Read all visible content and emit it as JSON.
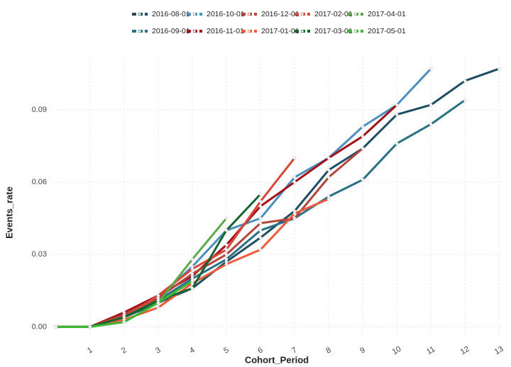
{
  "chart_data": {
    "type": "line",
    "x_label": "Cohort_Period",
    "y_label": "Events_rate",
    "x": [
      0,
      1,
      2,
      3,
      4,
      5,
      6,
      7,
      8,
      9,
      10,
      11,
      12,
      13
    ],
    "xlim": [
      -0.1,
      13.1
    ],
    "xticks": [
      1,
      2,
      3,
      4,
      5,
      6,
      7,
      8,
      9,
      10,
      11,
      12,
      13
    ],
    "ylim": [
      -0.004,
      0.112
    ],
    "yticks": [
      {
        "value": 0,
        "label": "0.00"
      },
      0.03,
      0.06,
      0.09
    ],
    "grid": true,
    "legend": "top",
    "series": [
      {
        "name": "2016-08-01",
        "color": "#1d4e63",
        "values": [
          0,
          0,
          0.004,
          0.01,
          0.016,
          0.027,
          0.037,
          0.048,
          0.065,
          0.074,
          0.088,
          0.092,
          0.102,
          0.107
        ]
      },
      {
        "name": "2016-09-01",
        "color": "#2b7186",
        "values": [
          0,
          0,
          0.004,
          0.011,
          0.02,
          0.028,
          0.04,
          0.045,
          0.054,
          0.061,
          0.076,
          0.084,
          0.094,
          null
        ]
      },
      {
        "name": "2016-10-01",
        "color": "#4a8fc0",
        "values": [
          0,
          0,
          0.005,
          0.012,
          0.025,
          0.04,
          0.045,
          0.062,
          0.07,
          0.083,
          0.092,
          0.107,
          null,
          null
        ]
      },
      {
        "name": "2016-11-01",
        "color": "#a3121a",
        "values": [
          0,
          0,
          0.006,
          0.013,
          0.021,
          0.034,
          0.05,
          0.06,
          0.07,
          0.079,
          0.092,
          null,
          null,
          null
        ]
      },
      {
        "name": "2016-12-01",
        "color": "#b5443a",
        "values": [
          0,
          0,
          0.005,
          0.012,
          0.022,
          0.03,
          0.043,
          0.045,
          0.062,
          0.074,
          null,
          null,
          null,
          null
        ]
      },
      {
        "name": "2017-01-01",
        "color": "#ef5a3e",
        "values": [
          0,
          0,
          0.003,
          0.008,
          0.018,
          0.026,
          0.032,
          0.047,
          0.053,
          null,
          null,
          null,
          null,
          null
        ]
      },
      {
        "name": "2017-02-01",
        "color": "#d9473a",
        "values": [
          0,
          0,
          0.004,
          0.013,
          0.024,
          0.032,
          0.052,
          0.07,
          null,
          null,
          null,
          null,
          null,
          null
        ]
      },
      {
        "name": "2017-03-01",
        "color": "#17652e",
        "values": [
          0,
          0,
          0.004,
          0.011,
          0.016,
          0.04,
          0.055,
          null,
          null,
          null,
          null,
          null,
          null,
          null
        ]
      },
      {
        "name": "2017-04-01",
        "color": "#5ea84c",
        "values": [
          0,
          0,
          0.002,
          0.01,
          0.028,
          0.045,
          null,
          null,
          null,
          null,
          null,
          null,
          null,
          null
        ]
      },
      {
        "name": "2017-05-01",
        "color": "#3fb935",
        "values": [
          0,
          0,
          0.002,
          0.01,
          0.019,
          null,
          null,
          null,
          null,
          null,
          null,
          null,
          null,
          null
        ]
      }
    ]
  }
}
